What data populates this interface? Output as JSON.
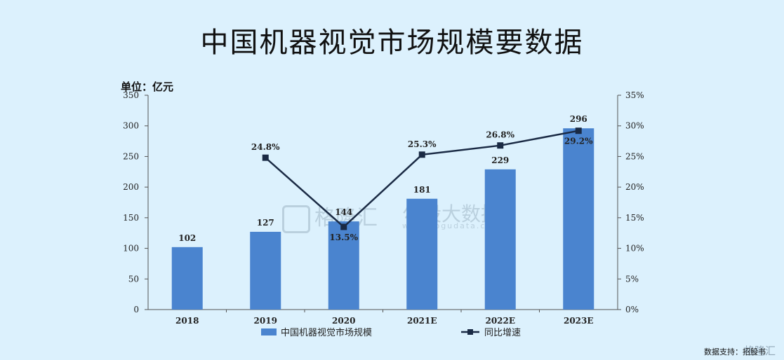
{
  "title": "中国机器视觉市场规模要数据",
  "unit": "单位：亿元",
  "source": "数据支持：招股书",
  "watermark": {
    "brand1": "格隆汇",
    "brand2": "勾股大数据",
    "url": "www.gogudata.com",
    "corner": "格隆汇"
  },
  "colors": {
    "bar": "#4a84cf",
    "line": "#1a2a44",
    "axis": "#555555"
  },
  "chart_data": {
    "type": "bar",
    "categories": [
      "2018",
      "2019",
      "2020",
      "2021E",
      "2022E",
      "2023E"
    ],
    "series": [
      {
        "name": "中国机器视觉市场规模",
        "type": "bar",
        "axis": "left",
        "values": [
          102,
          127,
          144,
          181,
          229,
          296
        ],
        "labels": [
          "102",
          "127",
          "144",
          "181",
          "229",
          "296"
        ]
      },
      {
        "name": "同比增速",
        "type": "line",
        "axis": "right",
        "values": [
          null,
          24.8,
          13.5,
          25.3,
          26.8,
          29.2
        ],
        "labels": [
          "",
          "24.8%",
          "13.5%",
          "25.3%",
          "26.8%",
          "29.2%"
        ]
      }
    ],
    "ylim": [
      0,
      350
    ],
    "yticks": [
      "0",
      "50",
      "100",
      "150",
      "200",
      "250",
      "300",
      "350"
    ],
    "y2lim": [
      0,
      35
    ],
    "y2ticks": [
      "0%",
      "5%",
      "10%",
      "15%",
      "20%",
      "25%",
      "30%",
      "35%"
    ],
    "grid": false,
    "legend_position": "bottom"
  }
}
